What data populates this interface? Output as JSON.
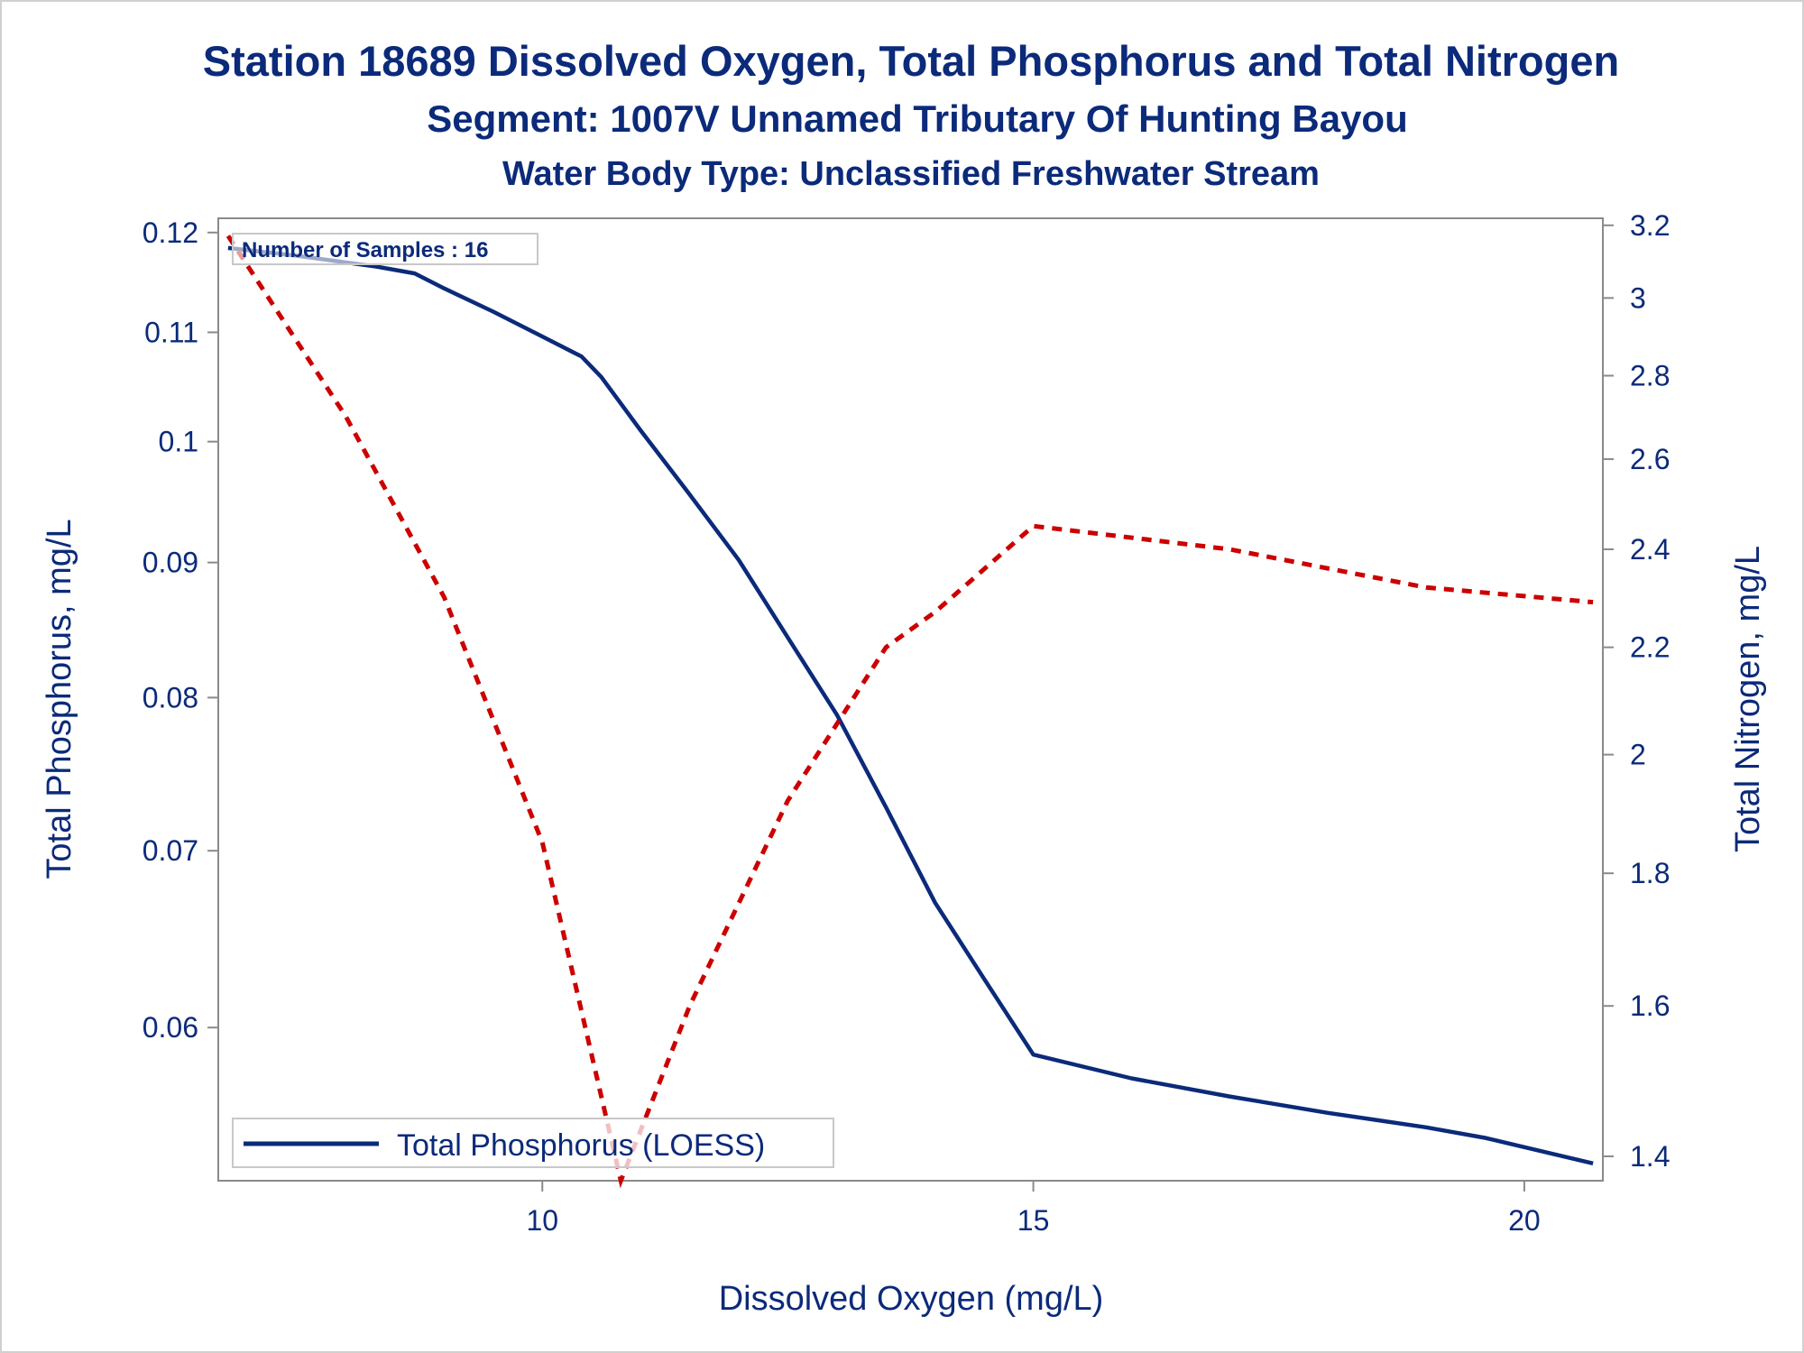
{
  "colors": {
    "text": "#0b2a7a",
    "phosphorus_line": "#0b2a7a",
    "nitrogen_line": "#cc0000",
    "axis": "#8a8a8a"
  },
  "chart_data": {
    "type": "line",
    "title": "Station 18689  Dissolved Oxygen, Total Phosphorus and Total Nitrogen",
    "subtitle": "Segment: 1007V  Unnamed Tributary Of Hunting Bayou",
    "subtitle2": "Water Body Type: Unclassified Freshwater Stream",
    "xlabel": "Dissolved Oxygen (mg/L)",
    "ylabel_left": "Total Phosphorus, mg/L",
    "ylabel_right": "Total Nitrogen, mg/L",
    "xlim": [
      6.7,
      20.8
    ],
    "ylim_left": [
      0.0525,
      0.1215
    ],
    "ylim_right": [
      1.37,
      3.22
    ],
    "y_scale": "log",
    "x_ticks": [
      10,
      15,
      20
    ],
    "x_tick_labels": [
      "10",
      "15",
      "20"
    ],
    "y_left_ticks": [
      0.06,
      0.07,
      0.08,
      0.09,
      0.1,
      0.11,
      0.12
    ],
    "y_left_tick_labels": [
      "0.06",
      "0.07",
      "0.08",
      "0.09",
      "0.1",
      "0.11",
      "0.12"
    ],
    "y_right_ticks": [
      1.4,
      1.6,
      1.8,
      2,
      2.2,
      2.4,
      2.6,
      2.8,
      3,
      3.2
    ],
    "y_right_tick_labels": [
      "1.4",
      "1.6",
      "1.8",
      "2",
      "2.2",
      "2.4",
      "2.6",
      "2.8",
      "3",
      "3.2"
    ],
    "annotation": "Number of Samples : 16",
    "legend": {
      "entries": [
        "Total Phosphorus (LOESS)"
      ],
      "position": "bottom-left"
    },
    "series": [
      {
        "name": "Total Phosphorus (LOESS)",
        "axis": "left",
        "style": "solid",
        "x": [
          6.8,
          7.5,
          8.3,
          8.7,
          9.0,
          9.5,
          10.0,
          10.4,
          10.6,
          11.0,
          11.5,
          12.0,
          12.5,
          13.0,
          13.5,
          14.0,
          14.5,
          15.0,
          16.0,
          17.0,
          18.0,
          19.0,
          19.6,
          20.7
        ],
        "y": [
          0.1184,
          0.1176,
          0.1165,
          0.1158,
          0.1143,
          0.112,
          0.1096,
          0.1077,
          0.1058,
          0.101,
          0.0955,
          0.0902,
          0.0843,
          0.0788,
          0.0727,
          0.0669,
          0.0626,
          0.0586,
          0.0574,
          0.0565,
          0.0557,
          0.055,
          0.0545,
          0.0533
        ]
      },
      {
        "name": "Total Nitrogen",
        "axis": "right",
        "style": "dashed",
        "x": [
          6.8,
          8.0,
          9.0,
          10.0,
          10.8,
          11.5,
          12.5,
          13.5,
          14.0,
          15.0,
          17.0,
          19.0,
          20.7
        ],
        "y": [
          3.17,
          2.7,
          2.3,
          1.85,
          1.37,
          1.6,
          1.92,
          2.2,
          2.27,
          2.45,
          2.4,
          2.32,
          2.29
        ]
      }
    ]
  }
}
